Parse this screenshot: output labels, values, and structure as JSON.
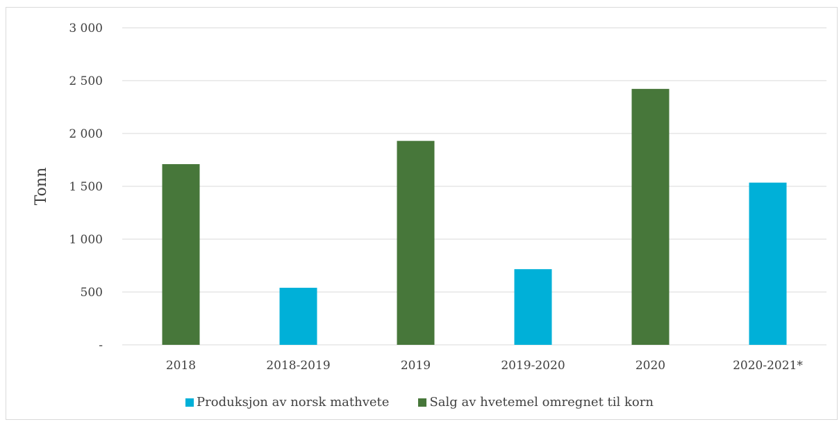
{
  "chart_data": {
    "type": "bar",
    "categories": [
      "2018",
      "2018-2019",
      "2019",
      "2019-2020",
      "2020",
      "2020-2021*"
    ],
    "series": [
      {
        "name": "Produksjon av norsk mathvete",
        "color": "#00b0d8",
        "values": [
          null,
          540,
          null,
          716,
          null,
          1535
        ]
      },
      {
        "name": "Salg av hvetemel omregnet til korn",
        "color": "#47773a",
        "values": [
          1710,
          null,
          1930,
          null,
          2422,
          null
        ]
      }
    ],
    "ylabel": "Tonn",
    "ylim": [
      0,
      3000
    ],
    "yticks": [
      {
        "value": 0,
        "label": "-"
      },
      {
        "value": 500,
        "label": "500"
      },
      {
        "value": 1000,
        "label": "1 000"
      },
      {
        "value": 1500,
        "label": "1 500"
      },
      {
        "value": 2000,
        "label": "2 000"
      },
      {
        "value": 2500,
        "label": "2 500"
      },
      {
        "value": 3000,
        "label": "3 000"
      }
    ],
    "grid": true,
    "legend_position": "bottom"
  }
}
